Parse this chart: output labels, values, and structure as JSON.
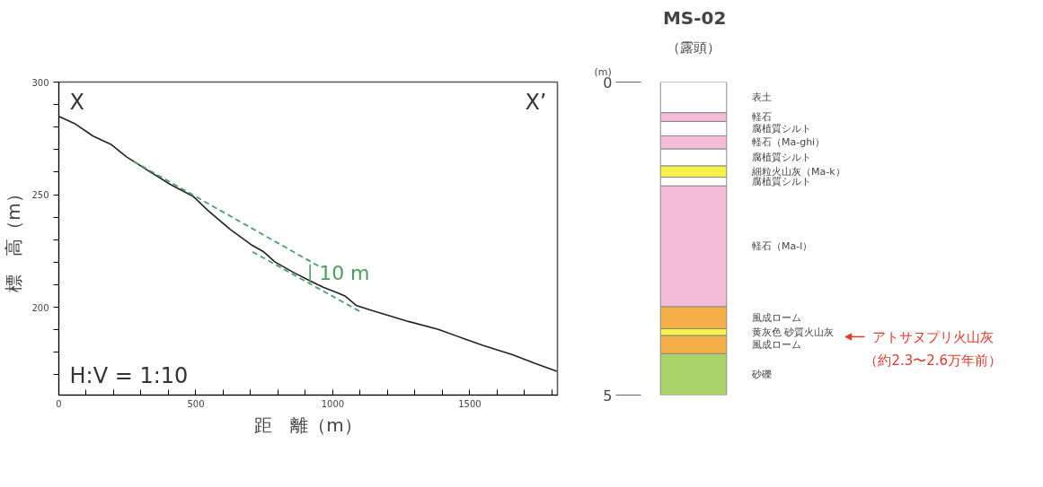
{
  "chart_data": [
    {
      "type": "line",
      "xlabel": "距　離（m）",
      "ylabel": "標　高（m）",
      "xlim": [
        0,
        1820
      ],
      "ylim": [
        161,
        300
      ],
      "xticks": [
        0,
        {
          "value": 100,
          "label": null
        },
        {
          "value": 200,
          "label": null
        },
        {
          "value": 300,
          "label": null
        },
        {
          "value": 400,
          "label": null
        },
        500,
        {
          "value": 600,
          "label": null
        },
        {
          "value": 700,
          "label": null
        },
        {
          "value": 800,
          "label": null
        },
        {
          "value": 900,
          "label": null
        },
        1000,
        {
          "value": 1100,
          "label": null
        },
        {
          "value": 1200,
          "label": null
        },
        {
          "value": 1300,
          "label": null
        },
        {
          "value": 1400,
          "label": null
        },
        1500,
        {
          "value": 1600,
          "label": null
        },
        {
          "value": 1700,
          "label": null
        },
        {
          "value": 1800,
          "label": null
        }
      ],
      "yticks": [
        {
          "value": 170,
          "label": null
        },
        {
          "value": 180,
          "label": null
        },
        {
          "value": 190,
          "label": null
        },
        200,
        {
          "value": 210,
          "label": null
        },
        {
          "value": 220,
          "label": null
        },
        {
          "value": 230,
          "label": null
        },
        {
          "value": 240,
          "label": null
        },
        250,
        {
          "value": 260,
          "label": null
        },
        {
          "value": 270,
          "label": null
        },
        {
          "value": 280,
          "label": null
        },
        {
          "value": 290,
          "label": null
        },
        300
      ],
      "grid": false,
      "series": [
        {
          "color": "#222222",
          "line_style": "solid",
          "x": [
            0,
            57,
            125,
            192,
            247,
            328,
            409,
            491,
            545,
            626,
            707,
            748,
            789,
            856,
            924,
            965,
            1019,
            1046,
            1087,
            1141,
            1276,
            1385,
            1480,
            1547,
            1656,
            1737,
            1818
          ],
          "values": [
            284.8,
            281.6,
            276,
            272.2,
            266.8,
            260.5,
            254.4,
            249.2,
            242.9,
            234.5,
            227.4,
            224.6,
            220.1,
            215.5,
            211.3,
            208.9,
            206.3,
            204.9,
            200.7,
            198.6,
            193.7,
            190.2,
            186,
            183.1,
            178.9,
            175.1,
            171.6
          ]
        },
        {
          "color": "#4a9e6a",
          "line_style": "dashed",
          "x": [
            274,
            958
          ],
          "values": [
            264.7,
            217.6
          ]
        },
        {
          "color": "#4a9e6a",
          "line_style": "dashed",
          "x": [
            707,
            1107
          ],
          "values": [
            224.6,
            197.6
          ]
        },
        {
          "color": "#4aa05a",
          "line_style": "solid",
          "x": [
            917,
            917
          ],
          "values": [
            211,
            219
          ]
        }
      ],
      "annotations": [
        "X",
        "X’",
        "H:V = 1:10",
        "10 m"
      ]
    },
    {
      "type": "bar",
      "stacked": true,
      "title": "MS-02",
      "subtitle": "（露頭）",
      "ylabel": "(m)",
      "categories": [
        null
      ],
      "ylim": [
        5,
        0
      ],
      "yticks": [
        0,
        5
      ],
      "grid": false,
      "series": [
        {
          "name": "表土",
          "color": "#ffffff",
          "values": [
            0.49
          ]
        },
        {
          "name": "軽石",
          "color": "#f4bcd8",
          "values": [
            0.14
          ]
        },
        {
          "name": "腐植質シルト",
          "color": "#ffffff",
          "values": [
            0.23
          ]
        },
        {
          "name": "軽石（Ma-ghi）",
          "color": "#f4bcd8",
          "values": [
            0.21
          ]
        },
        {
          "name": "腐植質シルト",
          "color": "#ffffff",
          "values": [
            0.27
          ]
        },
        {
          "name": "細粒火山灰（Ma-k）",
          "color": "#f7f24a",
          "values": [
            0.18
          ]
        },
        {
          "name": "腐植質シルト",
          "color": "#ffffff",
          "values": [
            0.14
          ]
        },
        {
          "name": "軽石（Ma-l）",
          "color": "#f4bcd8",
          "values": [
            1.93
          ]
        },
        {
          "name": "風成ローム",
          "color": "#f5b04a",
          "values": [
            0.35
          ]
        },
        {
          "name": "黄灰色 砂質火山灰",
          "color": "#f7f24a",
          "values": [
            0.11
          ]
        },
        {
          "name": "風成ローム",
          "color": "#f5b04a",
          "values": [
            0.29
          ]
        },
        {
          "name": "砂礫",
          "color": "#a9d46a",
          "values": [
            0.66
          ]
        }
      ],
      "annotations": [
        "アトサヌプリ火山灰",
        "（約2.3〜2.6万年前）"
      ]
    }
  ]
}
